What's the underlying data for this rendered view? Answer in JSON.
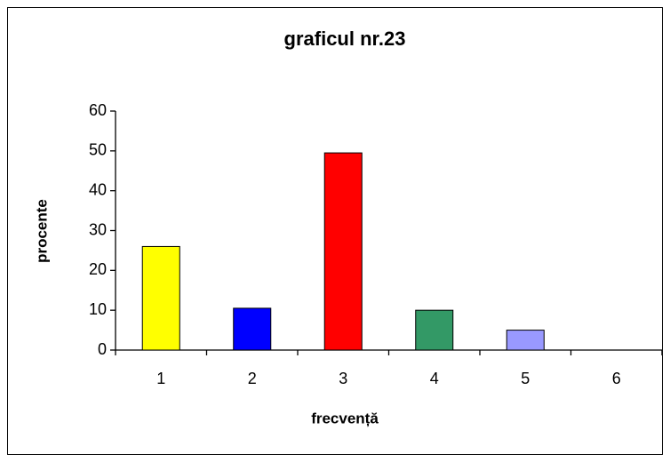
{
  "chart_data": {
    "type": "bar",
    "title": "graficul nr.23",
    "x_label": "frecvență",
    "y_label": "procente",
    "categories": [
      "1",
      "2",
      "3",
      "4",
      "5",
      "6"
    ],
    "values": [
      26,
      10.5,
      49.5,
      10,
      5,
      0
    ],
    "colors": [
      "#ffff00",
      "#0000ff",
      "#ff0000",
      "#339966",
      "#9999ff",
      "#ffffff"
    ],
    "ylim": [
      0,
      60
    ],
    "yticks": [
      0,
      10,
      20,
      30,
      40,
      50,
      60
    ],
    "grid": false
  }
}
